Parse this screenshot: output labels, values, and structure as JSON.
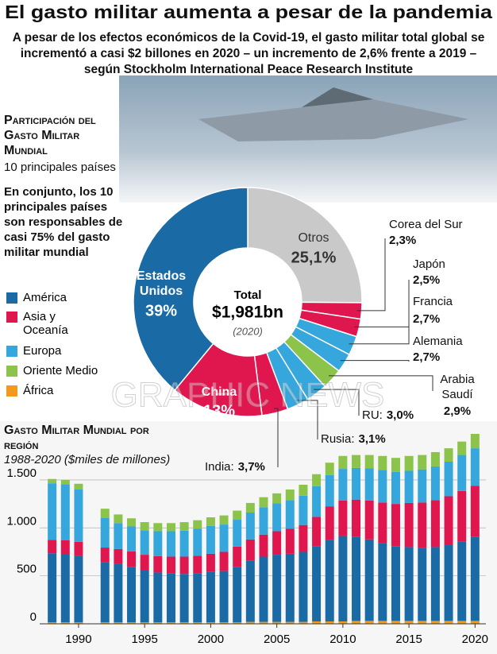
{
  "header": {
    "title": "El gasto militar aumenta a pesar de la pandemia",
    "subtitle": "A pesar de los efectos económicos de la Covid-19, el gasto militar total global se incrementó a casi $2 billones en 2020 – un incremento de 2,6% frente a 2019 – según Stockholm International Peace Research Institute"
  },
  "watermark": "GRAPHIC NEWS",
  "chart_data": [
    {
      "type": "donut",
      "title": "Participación del Gasto Militar Mundial",
      "subtitle": "10 principales países",
      "annotation": "En conjunto, los 10 principales países son responsables de casi 75% del gasto militar mundial",
      "center": {
        "label": "Total",
        "value": "$1,981bn",
        "note": "(2020)"
      },
      "categories": [
        "Otros",
        "Corea del Sur",
        "Japón",
        "Francia",
        "Alemania",
        "Arabia Saudí",
        "RU:",
        "Rusia:",
        "India:",
        "China",
        "Estados Unidos"
      ],
      "values": [
        25.1,
        2.3,
        2.5,
        2.7,
        2.7,
        2.9,
        3.0,
        3.1,
        3.7,
        13,
        39
      ],
      "value_labels": [
        "25,1%",
        "2,3%",
        "2,5%",
        "2,7%",
        "2,7%",
        "2,9%",
        "3,0%",
        "3,1%",
        "3,7%",
        "13%",
        "39%"
      ],
      "colors": [
        "#c9c9c9",
        "#e0164f",
        "#e0164f",
        "#35a7dc",
        "#35a7dc",
        "#8cc34a",
        "#35a7dc",
        "#35a7dc",
        "#e0164f",
        "#e0164f",
        "#1a6aa6"
      ]
    },
    {
      "type": "stacked_bar",
      "title": "Gasto Militar Mundial por región",
      "subtitle": "1988-2020 ($miles de millones)",
      "x": [
        1988,
        1989,
        1990,
        1991,
        1992,
        1993,
        1994,
        1995,
        1996,
        1997,
        1998,
        1999,
        2000,
        2001,
        2002,
        2003,
        2004,
        2005,
        2006,
        2007,
        2008,
        2009,
        2010,
        2011,
        2012,
        2013,
        2014,
        2015,
        2016,
        2017,
        2018,
        2019,
        2020
      ],
      "series": [
        {
          "name": "África",
          "color": "#f39a1e",
          "values": [
            15,
            15,
            15,
            null,
            15,
            15,
            15,
            15,
            15,
            15,
            15,
            15,
            15,
            15,
            15,
            20,
            20,
            20,
            20,
            20,
            25,
            25,
            25,
            30,
            30,
            30,
            30,
            30,
            30,
            30,
            30,
            30,
            30
          ]
        },
        {
          "name": "América",
          "color": "#1a6aa6",
          "values": [
            720,
            710,
            690,
            null,
            630,
            610,
            580,
            540,
            520,
            510,
            505,
            510,
            525,
            535,
            580,
            640,
            680,
            700,
            710,
            730,
            780,
            850,
            890,
            880,
            850,
            810,
            780,
            770,
            760,
            770,
            790,
            830,
            880
          ]
        },
        {
          "name": "Asia y Oceanía",
          "color": "#e0164f",
          "values": [
            140,
            145,
            150,
            null,
            150,
            155,
            160,
            165,
            170,
            175,
            180,
            185,
            190,
            200,
            210,
            220,
            230,
            245,
            260,
            280,
            310,
            350,
            370,
            385,
            405,
            425,
            440,
            460,
            475,
            490,
            510,
            525,
            530
          ]
        },
        {
          "name": "Europa",
          "color": "#35a7dc",
          "values": [
            590,
            585,
            545,
            null,
            310,
            270,
            260,
            255,
            260,
            265,
            270,
            280,
            290,
            285,
            280,
            280,
            285,
            290,
            300,
            305,
            320,
            325,
            330,
            330,
            335,
            340,
            335,
            335,
            345,
            350,
            360,
            375,
            390
          ]
        },
        {
          "name": "Oriente Medio",
          "color": "#8cc34a",
          "values": [
            45,
            45,
            60,
            null,
            95,
            90,
            85,
            85,
            85,
            85,
            90,
            90,
            90,
            95,
            95,
            100,
            105,
            105,
            110,
            115,
            125,
            130,
            135,
            135,
            140,
            145,
            145,
            155,
            150,
            150,
            140,
            140,
            150
          ]
        }
      ],
      "xlim": [
        1987,
        2021
      ],
      "xticks": [
        1990,
        1995,
        2000,
        2005,
        2010,
        2015,
        2020
      ],
      "ylim": [
        0,
        2050
      ],
      "yticks": [
        0,
        500,
        {
          "value": 1000,
          "label": "1.000"
        },
        {
          "value": 1500,
          "label": "1.500"
        }
      ],
      "grid": true
    }
  ]
}
